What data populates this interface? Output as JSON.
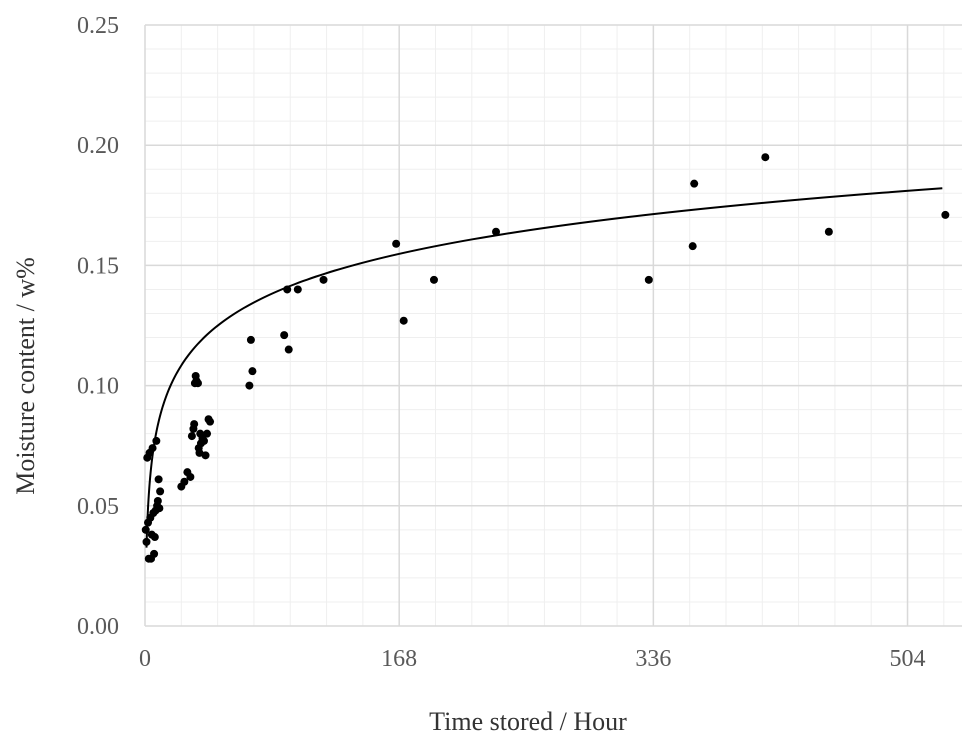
{
  "chart_data": {
    "type": "scatter",
    "title": "",
    "xlabel": "Time stored / Hour",
    "ylabel": "Moisture content  / w%",
    "xlim": [
      0,
      540
    ],
    "ylim": [
      0,
      0.25
    ],
    "x_ticks": [
      0,
      168,
      336,
      504
    ],
    "x_tick_labels": [
      "0",
      "168",
      "336",
      "504"
    ],
    "y_ticks": [
      0,
      0.05,
      0.1,
      0.15,
      0.2,
      0.25
    ],
    "y_tick_labels": [
      "0.00",
      "0.05",
      "0.10",
      "0.15",
      "0.20",
      "0.25"
    ],
    "x_minor_step": 24,
    "y_minor_step": 0.01,
    "grid": true,
    "legend": "none",
    "colors": {
      "points": "#000000",
      "trend": "#000000",
      "major_grid": "#d9d9d9",
      "minor_grid": "#efefef",
      "tick_text": "#595959"
    },
    "series": [
      {
        "points": [
          [
            0.5,
            0.04
          ],
          [
            1,
            0.035
          ],
          [
            1.5,
            0.07
          ],
          [
            2,
            0.043
          ],
          [
            2.5,
            0.028
          ],
          [
            3,
            0.072
          ],
          [
            3.5,
            0.045
          ],
          [
            4,
            0.028
          ],
          [
            4.5,
            0.038
          ],
          [
            5,
            0.074
          ],
          [
            5.5,
            0.047
          ],
          [
            6,
            0.03
          ],
          [
            6.5,
            0.037
          ],
          [
            7,
            0.048
          ],
          [
            7.5,
            0.077
          ],
          [
            8,
            0.05
          ],
          [
            8.5,
            0.052
          ],
          [
            9,
            0.061
          ],
          [
            9.5,
            0.049
          ],
          [
            10,
            0.056
          ],
          [
            24,
            0.058
          ],
          [
            26,
            0.06
          ],
          [
            28,
            0.064
          ],
          [
            30,
            0.062
          ],
          [
            31,
            0.079
          ],
          [
            32,
            0.082
          ],
          [
            32.5,
            0.084
          ],
          [
            33,
            0.101
          ],
          [
            33.5,
            0.104
          ],
          [
            34,
            0.102
          ],
          [
            35,
            0.101
          ],
          [
            35.5,
            0.074
          ],
          [
            36,
            0.072
          ],
          [
            36.5,
            0.08
          ],
          [
            37,
            0.076
          ],
          [
            38,
            0.078
          ],
          [
            39,
            0.077
          ],
          [
            40,
            0.071
          ],
          [
            41,
            0.08
          ],
          [
            42,
            0.086
          ],
          [
            43,
            0.085
          ],
          [
            69,
            0.1
          ],
          [
            70,
            0.119
          ],
          [
            71,
            0.106
          ],
          [
            92,
            0.121
          ],
          [
            94,
            0.14
          ],
          [
            95,
            0.115
          ],
          [
            101,
            0.14
          ],
          [
            118,
            0.144
          ],
          [
            166,
            0.159
          ],
          [
            171,
            0.127
          ],
          [
            191,
            0.144
          ],
          [
            232,
            0.164
          ],
          [
            333,
            0.144
          ],
          [
            362,
            0.158
          ],
          [
            363,
            0.184
          ],
          [
            410,
            0.195
          ],
          [
            452,
            0.164
          ],
          [
            529,
            0.171
          ]
        ]
      }
    ],
    "trendline": {
      "type": "log",
      "a": 0.02385,
      "b": 0.0326,
      "x_range": [
        1,
        527
      ]
    }
  }
}
